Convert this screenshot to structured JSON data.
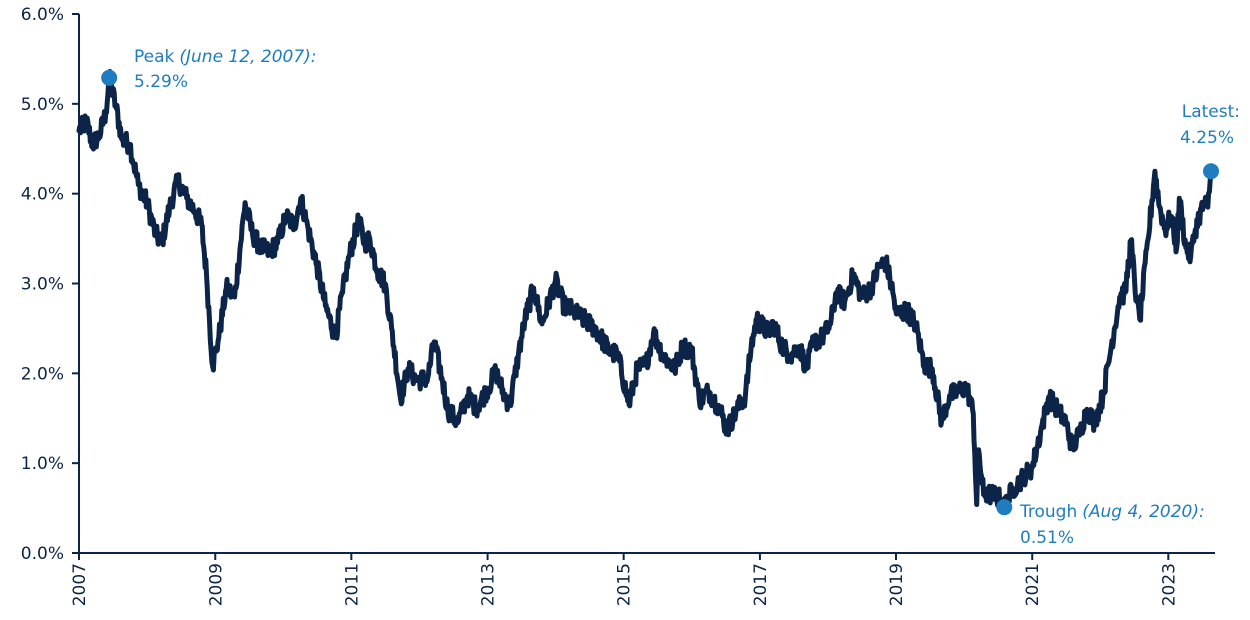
{
  "chart_data": {
    "type": "line",
    "title": "",
    "xlabel": "",
    "ylabel": "",
    "ylim": [
      0,
      6
    ],
    "xlim": [
      "2007-01-01",
      "2023-08-18"
    ],
    "y_ticks": [
      {
        "value": 0,
        "label": "0.0%"
      },
      {
        "value": 1,
        "label": "1.0%"
      },
      {
        "value": 2,
        "label": "2.0%"
      },
      {
        "value": 3,
        "label": "3.0%"
      },
      {
        "value": 4,
        "label": "4.0%"
      },
      {
        "value": 5,
        "label": "5.0%"
      },
      {
        "value": 6,
        "label": "6.0%"
      }
    ],
    "x_ticks": [
      {
        "value": "2007-01-01",
        "label": "2007"
      },
      {
        "value": "2009-01-01",
        "label": "2009"
      },
      {
        "value": "2011-01-01",
        "label": "2011"
      },
      {
        "value": "2013-01-01",
        "label": "2013"
      },
      {
        "value": "2015-01-01",
        "label": "2015"
      },
      {
        "value": "2017-01-01",
        "label": "2017"
      },
      {
        "value": "2019-01-01",
        "label": "2019"
      },
      {
        "value": "2021-01-01",
        "label": "2021"
      },
      {
        "value": "2023-01-01",
        "label": "2023"
      }
    ],
    "grid": false,
    "line_color": "#0b2447",
    "highlight_color": "#1f7cc1",
    "series": [
      {
        "x": [
          "2007-01-01",
          "2007-02-10",
          "2007-03-15",
          "2007-04-20",
          "2007-05-25",
          "2007-06-12",
          "2007-07-20",
          "2007-08-20",
          "2007-10-01",
          "2007-11-15",
          "2008-01-01",
          "2008-02-15",
          "2008-03-20",
          "2008-05-01",
          "2008-06-15",
          "2008-08-01",
          "2008-09-15",
          "2008-10-20",
          "2008-11-15",
          "2008-12-18",
          "2009-01-20",
          "2009-03-01",
          "2009-04-15",
          "2009-06-10",
          "2009-07-20",
          "2009-09-01",
          "2009-10-15",
          "2009-12-01",
          "2010-01-15",
          "2010-03-01",
          "2010-04-05",
          "2010-05-15",
          "2010-06-30",
          "2010-08-15",
          "2010-10-08",
          "2010-11-15",
          "2010-12-20",
          "2011-02-09",
          "2011-03-15",
          "2011-04-10",
          "2011-05-20",
          "2011-06-30",
          "2011-08-05",
          "2011-09-22",
          "2011-11-01",
          "2011-12-20",
          "2012-02-15",
          "2012-03-20",
          "2012-05-01",
          "2012-06-01",
          "2012-07-25",
          "2012-09-15",
          "2012-11-01",
          "2012-12-20",
          "2013-02-15",
          "2013-04-01",
          "2013-05-01",
          "2013-06-15",
          "2013-07-20",
          "2013-09-05",
          "2013-10-20",
          "2013-12-31",
          "2014-02-15",
          "2014-04-01",
          "2014-06-01",
          "2014-08-01",
          "2014-10-15",
          "2014-12-01",
          "2015-01-30",
          "2015-03-15",
          "2015-05-01",
          "2015-06-10",
          "2015-08-01",
          "2015-10-01",
          "2015-11-15",
          "2016-01-01",
          "2016-02-11",
          "2016-04-01",
          "2016-06-01",
          "2016-07-08",
          "2016-09-01",
          "2016-10-15",
          "2016-11-15",
          "2016-12-15",
          "2017-02-15",
          "2017-03-15",
          "2017-05-01",
          "2017-06-15",
          "2017-08-01",
          "2017-09-08",
          "2017-10-15",
          "2017-12-01",
          "2018-01-15",
          "2018-02-15",
          "2018-04-01",
          "2018-05-17",
          "2018-07-01",
          "2018-08-20",
          "2018-10-05",
          "2018-11-08",
          "2018-12-15",
          "2019-01-03",
          "2019-03-01",
          "2019-04-15",
          "2019-06-01",
          "2019-07-15",
          "2019-09-03",
          "2019-10-15",
          "2019-12-01",
          "2020-01-15",
          "2020-02-20",
          "2020-03-09",
          "2020-03-19",
          "2020-04-15",
          "2020-06-05",
          "2020-07-15",
          "2020-08-04",
          "2020-09-15",
          "2020-11-15",
          "2021-01-01",
          "2021-02-15",
          "2021-03-31",
          "2021-05-15",
          "2021-07-01",
          "2021-08-04",
          "2021-09-15",
          "2021-10-21",
          "2021-12-01",
          "2022-01-15",
          "2022-03-01",
          "2022-04-15",
          "2022-05-15",
          "2022-06-14",
          "2022-07-15",
          "2022-08-01",
          "2022-09-15",
          "2022-10-21",
          "2022-11-15",
          "2022-12-15",
          "2023-01-15",
          "2023-02-15",
          "2023-03-01",
          "2023-04-05",
          "2023-05-01",
          "2023-05-26",
          "2023-06-15",
          "2023-07-15",
          "2023-08-01",
          "2023-08-18"
        ],
        "values": [
          4.7,
          4.8,
          4.55,
          4.65,
          4.9,
          5.29,
          4.95,
          4.6,
          4.55,
          4.1,
          3.9,
          3.55,
          3.45,
          3.85,
          4.15,
          3.95,
          3.8,
          3.65,
          3.1,
          2.08,
          2.4,
          2.95,
          2.85,
          3.9,
          3.55,
          3.4,
          3.35,
          3.45,
          3.75,
          3.65,
          3.95,
          3.6,
          3.2,
          2.75,
          2.4,
          2.9,
          3.3,
          3.7,
          3.45,
          3.5,
          3.15,
          3.0,
          2.5,
          1.72,
          2.05,
          1.92,
          1.95,
          2.35,
          1.95,
          1.6,
          1.45,
          1.75,
          1.62,
          1.78,
          2.02,
          1.75,
          1.65,
          2.2,
          2.6,
          2.95,
          2.55,
          3.03,
          2.75,
          2.7,
          2.6,
          2.5,
          2.25,
          2.2,
          1.65,
          2.05,
          2.1,
          2.45,
          2.2,
          2.05,
          2.3,
          2.25,
          1.7,
          1.8,
          1.6,
          1.37,
          1.6,
          1.75,
          2.3,
          2.6,
          2.45,
          2.55,
          2.3,
          2.2,
          2.3,
          2.05,
          2.35,
          2.4,
          2.55,
          2.9,
          2.8,
          3.1,
          2.85,
          2.95,
          3.2,
          3.24,
          2.9,
          2.66,
          2.7,
          2.55,
          2.1,
          2.05,
          1.47,
          1.75,
          1.8,
          1.85,
          1.55,
          0.54,
          1.15,
          0.65,
          0.65,
          0.6,
          0.51,
          0.7,
          0.85,
          0.95,
          1.35,
          1.74,
          1.6,
          1.45,
          1.17,
          1.35,
          1.6,
          1.45,
          1.75,
          2.3,
          2.85,
          2.9,
          3.48,
          2.8,
          2.6,
          3.5,
          4.25,
          3.85,
          3.6,
          3.75,
          3.4,
          3.95,
          3.4,
          3.3,
          3.6,
          3.75,
          3.9,
          3.85,
          4.25
        ]
      }
    ],
    "annotations": [
      {
        "x": "2007-06-12",
        "y": 5.29,
        "label": "Peak",
        "date_label": "(June 12, 2007):",
        "value_label": "5.29%"
      },
      {
        "x": "2020-08-04",
        "y": 0.51,
        "label": "Trough",
        "date_label": "(Aug 4, 2020):",
        "value_label": "0.51%"
      },
      {
        "x": "2023-08-18",
        "y": 4.25,
        "label": "Latest:",
        "date_label": "",
        "value_label": "4.25%"
      }
    ]
  }
}
